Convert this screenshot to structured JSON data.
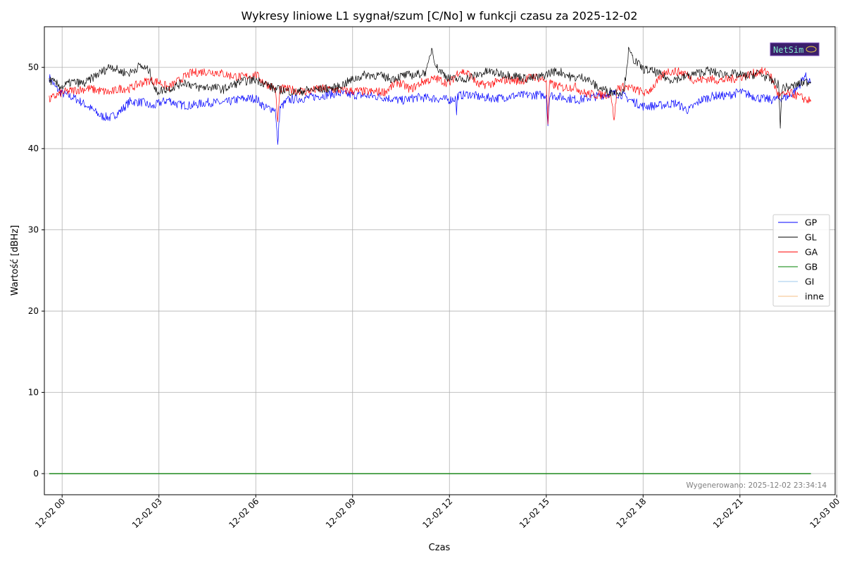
{
  "chart_data": {
    "type": "line",
    "title": "Wykresy liniowe L1 sygnał/szum [C/No] w funkcji czasu za 2025-12-02",
    "xlabel": "Czas",
    "ylabel": "Wartość [dBHz]",
    "x_range_hours": [
      -0.55,
      23.95
    ],
    "xlim": [
      "2025-12-01 23:27",
      "2025-12-02 23:57"
    ],
    "ylim": [
      -2.6,
      55
    ],
    "x_ticks": [
      "12-02 00",
      "12-02 03",
      "12-02 06",
      "12-02 09",
      "12-02 12",
      "12-02 15",
      "12-02 18",
      "12-02 21",
      "12-03 00"
    ],
    "x_tick_hours": [
      0,
      3,
      6,
      9,
      12,
      15,
      18,
      21,
      24
    ],
    "y_ticks": [
      0,
      10,
      20,
      30,
      40,
      50
    ],
    "grid": true,
    "legend_position": "center-right",
    "footer": "Wygenerowano: 2025-12-02 23:34:14",
    "logo_text": "NetSim",
    "series": [
      {
        "name": "GP",
        "color": "#0000ff",
        "points": [
          [
            -0.4,
            48.8
          ],
          [
            -0.2,
            47.5
          ],
          [
            0.0,
            46.8
          ],
          [
            0.4,
            46.2
          ],
          [
            0.8,
            45.2
          ],
          [
            1.2,
            44.0
          ],
          [
            1.5,
            43.8
          ],
          [
            1.8,
            44.6
          ],
          [
            2.1,
            45.8
          ],
          [
            2.5,
            45.7
          ],
          [
            2.8,
            45.1
          ],
          [
            3.0,
            45.6
          ],
          [
            3.3,
            46.0
          ],
          [
            3.6,
            45.4
          ],
          [
            4.0,
            45.3
          ],
          [
            4.5,
            45.7
          ],
          [
            5.0,
            45.6
          ],
          [
            5.5,
            46.1
          ],
          [
            6.0,
            46.2
          ],
          [
            6.3,
            45.0
          ],
          [
            6.6,
            44.9
          ],
          [
            6.68,
            40.5
          ],
          [
            6.75,
            45.0
          ],
          [
            7.0,
            46.0
          ],
          [
            7.5,
            46.2
          ],
          [
            8.0,
            46.5
          ],
          [
            8.5,
            46.8
          ],
          [
            9.0,
            46.6
          ],
          [
            9.5,
            46.5
          ],
          [
            10.0,
            46.3
          ],
          [
            10.5,
            45.9
          ],
          [
            11.0,
            46.3
          ],
          [
            11.5,
            46.2
          ],
          [
            12.0,
            46.0
          ],
          [
            12.2,
            46.2
          ],
          [
            12.22,
            44.0
          ],
          [
            12.25,
            46.5
          ],
          [
            12.6,
            46.7
          ],
          [
            13.0,
            46.3
          ],
          [
            13.5,
            46.2
          ],
          [
            14.0,
            46.5
          ],
          [
            14.5,
            46.6
          ],
          [
            15.0,
            46.6
          ],
          [
            15.05,
            42.8
          ],
          [
            15.1,
            46.6
          ],
          [
            15.5,
            46.3
          ],
          [
            16.0,
            46.0
          ],
          [
            16.5,
            46.4
          ],
          [
            17.0,
            46.8
          ],
          [
            17.3,
            46.7
          ],
          [
            17.6,
            46.0
          ],
          [
            18.0,
            45.2
          ],
          [
            18.5,
            45.3
          ],
          [
            19.0,
            45.6
          ],
          [
            19.4,
            44.7
          ],
          [
            19.8,
            46.0
          ],
          [
            20.2,
            46.5
          ],
          [
            20.6,
            46.5
          ],
          [
            21.0,
            47.0
          ],
          [
            21.3,
            46.6
          ],
          [
            21.6,
            46.2
          ],
          [
            22.0,
            46.0
          ],
          [
            22.5,
            46.4
          ],
          [
            22.8,
            47.5
          ],
          [
            23.0,
            49.0
          ],
          [
            23.2,
            48.2
          ]
        ]
      },
      {
        "name": "GL",
        "color": "#000000",
        "points": [
          [
            -0.4,
            48.5
          ],
          [
            -0.2,
            48.0
          ],
          [
            0.0,
            47.6
          ],
          [
            0.3,
            48.2
          ],
          [
            0.7,
            48.0
          ],
          [
            1.0,
            48.9
          ],
          [
            1.3,
            49.6
          ],
          [
            1.5,
            50.2
          ],
          [
            1.8,
            49.5
          ],
          [
            2.1,
            49.3
          ],
          [
            2.4,
            50.2
          ],
          [
            2.7,
            49.6
          ],
          [
            2.9,
            47.0
          ],
          [
            3.1,
            47.2
          ],
          [
            3.4,
            47.5
          ],
          [
            3.8,
            48.2
          ],
          [
            4.2,
            47.5
          ],
          [
            4.6,
            47.6
          ],
          [
            5.0,
            47.3
          ],
          [
            5.5,
            48.2
          ],
          [
            6.0,
            48.5
          ],
          [
            6.3,
            48.0
          ],
          [
            6.6,
            47.3
          ],
          [
            6.9,
            47.2
          ],
          [
            7.2,
            46.9
          ],
          [
            7.6,
            47.2
          ],
          [
            8.0,
            47.3
          ],
          [
            8.5,
            47.5
          ],
          [
            9.0,
            48.5
          ],
          [
            9.4,
            49.1
          ],
          [
            9.8,
            49.0
          ],
          [
            10.2,
            48.6
          ],
          [
            10.6,
            49.0
          ],
          [
            11.0,
            49.1
          ],
          [
            11.3,
            49.5
          ],
          [
            11.45,
            52.4
          ],
          [
            11.6,
            50.0
          ],
          [
            12.0,
            48.6
          ],
          [
            12.4,
            48.5
          ],
          [
            12.8,
            49.0
          ],
          [
            13.2,
            49.5
          ],
          [
            13.6,
            49.2
          ],
          [
            14.0,
            49.0
          ],
          [
            14.4,
            48.6
          ],
          [
            14.8,
            48.8
          ],
          [
            15.2,
            49.5
          ],
          [
            15.5,
            49.4
          ],
          [
            15.8,
            48.7
          ],
          [
            16.2,
            48.8
          ],
          [
            16.6,
            47.5
          ],
          [
            17.0,
            47.0
          ],
          [
            17.4,
            47.0
          ],
          [
            17.55,
            52.0
          ],
          [
            17.7,
            51.0
          ],
          [
            18.0,
            49.8
          ],
          [
            18.4,
            49.4
          ],
          [
            18.8,
            48.5
          ],
          [
            19.2,
            48.7
          ],
          [
            19.6,
            49.2
          ],
          [
            20.0,
            49.6
          ],
          [
            20.4,
            49.2
          ],
          [
            20.8,
            49.2
          ],
          [
            21.2,
            48.9
          ],
          [
            21.6,
            49.3
          ],
          [
            22.0,
            48.3
          ],
          [
            22.2,
            47.9
          ],
          [
            22.25,
            42.5
          ],
          [
            22.3,
            47.5
          ],
          [
            22.6,
            47.6
          ],
          [
            23.0,
            48.2
          ],
          [
            23.2,
            48.2
          ]
        ]
      },
      {
        "name": "GA",
        "color": "#ff0000",
        "points": [
          [
            -0.4,
            46.0
          ],
          [
            -0.2,
            46.5
          ],
          [
            0.0,
            46.9
          ],
          [
            0.4,
            47.2
          ],
          [
            0.8,
            47.4
          ],
          [
            1.2,
            47.1
          ],
          [
            1.5,
            46.9
          ],
          [
            1.8,
            47.4
          ],
          [
            2.1,
            47.4
          ],
          [
            2.4,
            48.0
          ],
          [
            2.7,
            48.4
          ],
          [
            3.0,
            48.2
          ],
          [
            3.3,
            47.5
          ],
          [
            3.7,
            48.6
          ],
          [
            4.0,
            49.3
          ],
          [
            4.4,
            49.5
          ],
          [
            4.8,
            49.4
          ],
          [
            5.2,
            49.0
          ],
          [
            5.6,
            48.8
          ],
          [
            6.0,
            49.1
          ],
          [
            6.3,
            48.0
          ],
          [
            6.6,
            47.5
          ],
          [
            6.68,
            43.3
          ],
          [
            6.75,
            47.4
          ],
          [
            7.2,
            47.2
          ],
          [
            7.6,
            47.0
          ],
          [
            8.0,
            47.4
          ],
          [
            8.5,
            47.2
          ],
          [
            9.0,
            47.1
          ],
          [
            9.5,
            47.0
          ],
          [
            10.0,
            47.0
          ],
          [
            10.4,
            48.2
          ],
          [
            10.8,
            47.3
          ],
          [
            11.2,
            48.3
          ],
          [
            11.6,
            48.6
          ],
          [
            12.0,
            48.0
          ],
          [
            12.3,
            49.6
          ],
          [
            12.6,
            49.2
          ],
          [
            12.9,
            47.8
          ],
          [
            13.3,
            48.0
          ],
          [
            13.8,
            48.5
          ],
          [
            14.2,
            48.3
          ],
          [
            14.6,
            48.9
          ],
          [
            15.0,
            48.4
          ],
          [
            15.05,
            43.0
          ],
          [
            15.1,
            48.0
          ],
          [
            15.5,
            47.5
          ],
          [
            15.9,
            47.6
          ],
          [
            16.2,
            46.8
          ],
          [
            16.6,
            46.6
          ],
          [
            17.0,
            46.7
          ],
          [
            17.1,
            43.5
          ],
          [
            17.2,
            47.5
          ],
          [
            17.5,
            47.6
          ],
          [
            17.8,
            47.2
          ],
          [
            18.1,
            46.8
          ],
          [
            18.4,
            48.0
          ],
          [
            18.7,
            49.5
          ],
          [
            19.0,
            49.5
          ],
          [
            19.3,
            49.3
          ],
          [
            19.6,
            48.4
          ],
          [
            20.0,
            48.6
          ],
          [
            20.4,
            48.4
          ],
          [
            20.8,
            48.6
          ],
          [
            21.2,
            49.0
          ],
          [
            21.6,
            49.5
          ],
          [
            21.9,
            49.4
          ],
          [
            22.2,
            46.5
          ],
          [
            22.6,
            46.8
          ],
          [
            22.9,
            46.3
          ],
          [
            23.2,
            45.8
          ]
        ]
      },
      {
        "name": "GB",
        "color": "#008000",
        "points": [
          [
            -0.4,
            0.0
          ],
          [
            23.2,
            0.0
          ]
        ]
      },
      {
        "name": "GI",
        "color": "#9ec8ec",
        "points": [
          [
            -0.4,
            0.0
          ],
          [
            23.2,
            0.0
          ]
        ]
      },
      {
        "name": "inne",
        "color": "#f5bf85",
        "points": [
          [
            -0.4,
            0.0
          ],
          [
            23.2,
            0.0
          ]
        ]
      }
    ]
  }
}
